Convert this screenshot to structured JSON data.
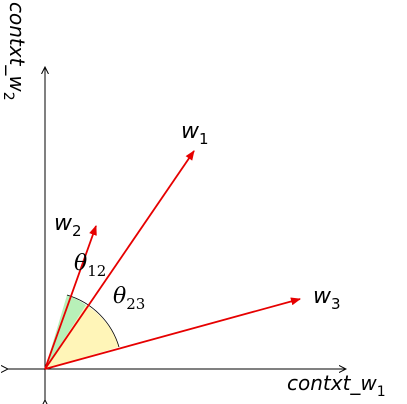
{
  "axes": {
    "x_label": "contxt_w",
    "x_label_sub": "1",
    "y_label": "contxt_w",
    "y_label_sub": "2"
  },
  "vectors": [
    {
      "name": "w",
      "sub": "1"
    },
    {
      "name": "w",
      "sub": "2"
    },
    {
      "name": "w",
      "sub": "3"
    }
  ],
  "angles": [
    {
      "symbol": "θ",
      "sub": "12"
    },
    {
      "symbol": "θ",
      "sub": "23"
    }
  ],
  "colors": {
    "vector": "#e60000",
    "angle12_fill": "#b8f0b8",
    "angle23_fill": "#fff5b8",
    "axis": "#000000"
  }
}
